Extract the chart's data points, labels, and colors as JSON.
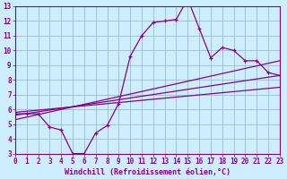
{
  "xlabel": "Windchill (Refroidissement éolien,°C)",
  "xlim": [
    0,
    23
  ],
  "ylim": [
    3,
    13
  ],
  "xticks": [
    0,
    1,
    2,
    3,
    4,
    5,
    6,
    7,
    8,
    9,
    10,
    11,
    12,
    13,
    14,
    15,
    16,
    17,
    18,
    19,
    20,
    21,
    22,
    23
  ],
  "yticks": [
    3,
    4,
    5,
    6,
    7,
    8,
    9,
    10,
    11,
    12,
    13
  ],
  "background_color": "#cceeff",
  "grid_color": "#99bbcc",
  "line_color": "#880088",
  "curve1_x": [
    0,
    1,
    2,
    3,
    4,
    5,
    6,
    7,
    8,
    9,
    10,
    11,
    12,
    13,
    14,
    15,
    16,
    17,
    18,
    19,
    20,
    21,
    22,
    23
  ],
  "curve1_y": [
    5.7,
    5.7,
    5.7,
    4.8,
    4.6,
    3.0,
    3.0,
    4.4,
    4.9,
    6.4,
    9.6,
    11.0,
    11.9,
    12.0,
    12.1,
    13.5,
    11.5,
    9.5,
    10.2,
    10.0,
    9.3,
    9.3,
    8.5,
    8.3
  ],
  "line1_x": [
    0,
    23
  ],
  "line1_y": [
    5.6,
    8.3
  ],
  "line2_x": [
    0,
    23
  ],
  "line2_y": [
    5.3,
    9.3
  ],
  "line3_x": [
    0,
    23
  ],
  "line3_y": [
    5.8,
    7.5
  ],
  "tick_fontsize": 5.5,
  "xlabel_fontsize": 6.0
}
